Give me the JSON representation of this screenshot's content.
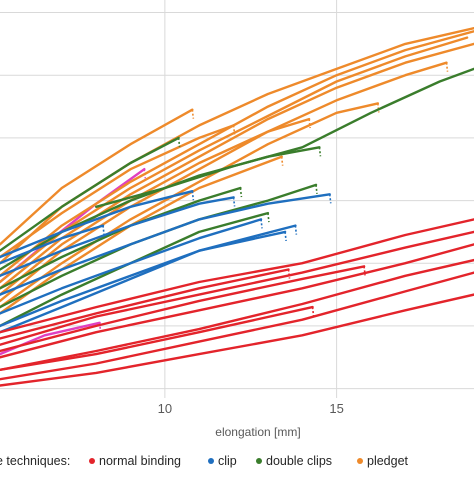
{
  "chart_data": {
    "type": "scatter",
    "xlabel": "elongation [mm]",
    "ylabel": "",
    "title": "",
    "xlim": [
      5.2,
      19.0
    ],
    "ylim": [
      -0.15,
      6.2
    ],
    "x_ticks": [
      10,
      15
    ],
    "x_tick_labels": [
      "10",
      "15"
    ],
    "grid": "vertical and horizontal",
    "legend": {
      "placement": "bottom",
      "title": "e techniques:",
      "entries": [
        "normal binding",
        "clip",
        "double clips",
        "pledget"
      ]
    },
    "colors": {
      "normal binding": "#e3242b",
      "clip": "#1f6fbf",
      "double clips": "#3a7d2c",
      "pledget": "#ee8a2b",
      "extra": "#e040c0"
    },
    "series": [
      {
        "name": "normal binding",
        "curves": [
          {
            "x": [
              5.2,
              8,
              11,
              14,
              17,
              19.0
            ],
            "y": [
              0.05,
              0.25,
              0.55,
              0.85,
              1.25,
              1.5
            ]
          },
          {
            "x": [
              5.2,
              8,
              11,
              14,
              17,
              19.0
            ],
            "y": [
              0.15,
              0.4,
              0.75,
              1.1,
              1.55,
              1.85
            ]
          },
          {
            "x": [
              5.2,
              8,
              11,
              14,
              17,
              19.0
            ],
            "y": [
              0.3,
              0.6,
              0.95,
              1.35,
              1.8,
              2.05
            ]
          },
          {
            "x": [
              5.2,
              8,
              11,
              14,
              17,
              19.0
            ],
            "y": [
              0.5,
              0.9,
              1.25,
              1.6,
              2.0,
              2.3
            ]
          },
          {
            "x": [
              5.2,
              8,
              11,
              14,
              17,
              19.0
            ],
            "y": [
              0.7,
              1.15,
              1.5,
              1.85,
              2.25,
              2.5
            ]
          },
          {
            "x": [
              5.2,
              8,
              11,
              14,
              17,
              19.0
            ],
            "y": [
              0.9,
              1.3,
              1.7,
              2.0,
              2.45,
              2.7
            ]
          },
          {
            "x": [
              5.2,
              8,
              11,
              14,
              15.8
            ],
            "y": [
              0.6,
              1.0,
              1.4,
              1.75,
              1.95
            ]
          },
          {
            "x": [
              5.2,
              8,
              11,
              13.6
            ],
            "y": [
              0.8,
              1.2,
              1.6,
              1.9
            ]
          },
          {
            "x": [
              5.2,
              8,
              11,
              14.3
            ],
            "y": [
              0.3,
              0.55,
              0.9,
              1.3
            ]
          }
        ]
      },
      {
        "name": "clip",
        "curves": [
          {
            "x": [
              5.2,
              7,
              9,
              11,
              12.8
            ],
            "y": [
              1.2,
              1.6,
              2.0,
              2.4,
              2.7
            ]
          },
          {
            "x": [
              5.2,
              7,
              9,
              11,
              13,
              14.8
            ],
            "y": [
              1.5,
              1.9,
              2.3,
              2.7,
              2.95,
              3.1
            ]
          },
          {
            "x": [
              5.2,
              7,
              9,
              11,
              12.0
            ],
            "y": [
              1.8,
              2.2,
              2.6,
              2.95,
              3.05
            ]
          },
          {
            "x": [
              5.2,
              7,
              9,
              10.8
            ],
            "y": [
              2.1,
              2.5,
              2.9,
              3.15
            ]
          },
          {
            "x": [
              5.2,
              7,
              9,
              11,
              13.5
            ],
            "y": [
              1.0,
              1.4,
              1.8,
              2.2,
              2.5
            ]
          },
          {
            "x": [
              5.2,
              7,
              9,
              11,
              13.8
            ],
            "y": [
              0.9,
              1.3,
              1.75,
              2.2,
              2.6
            ]
          },
          {
            "x": [
              5.2,
              7,
              8.2
            ],
            "y": [
              2.0,
              2.4,
              2.6
            ]
          }
        ]
      },
      {
        "name": "double clips",
        "curves": [
          {
            "x": [
              5.2,
              7,
              9,
              10.4
            ],
            "y": [
              2.2,
              2.9,
              3.6,
              4.0
            ]
          },
          {
            "x": [
              5.2,
              7,
              9,
              11,
              13,
              14.5
            ],
            "y": [
              1.9,
              2.5,
              3.0,
              3.4,
              3.7,
              3.85
            ]
          },
          {
            "x": [
              5.2,
              7,
              9,
              11,
              12.2
            ],
            "y": [
              1.6,
              2.1,
              2.6,
              3.0,
              3.2
            ]
          },
          {
            "x": [
              8,
              10,
              12,
              14,
              16,
              18,
              19.0
            ],
            "y": [
              2.9,
              3.2,
              3.55,
              3.85,
              4.4,
              4.9,
              5.1
            ]
          },
          {
            "x": [
              5.2,
              7,
              9,
              11,
              13,
              14.4
            ],
            "y": [
              1.3,
              1.8,
              2.3,
              2.7,
              3.0,
              3.25
            ]
          },
          {
            "x": [
              5.2,
              7,
              9,
              11,
              13.0
            ],
            "y": [
              1.0,
              1.5,
              2.0,
              2.5,
              2.8
            ]
          }
        ]
      },
      {
        "name": "pledget",
        "curves": [
          {
            "x": [
              5.2,
              7,
              9,
              11,
              13,
              15,
              17,
              19.0
            ],
            "y": [
              2.0,
              2.9,
              3.6,
              4.2,
              4.7,
              5.1,
              5.5,
              5.75
            ]
          },
          {
            "x": [
              5.2,
              7,
              9,
              11,
              13,
              15,
              17,
              19.0
            ],
            "y": [
              1.8,
              2.6,
              3.3,
              3.9,
              4.5,
              5.0,
              5.4,
              5.7
            ]
          },
          {
            "x": [
              5.2,
              7,
              9,
              11,
              13,
              15,
              17,
              19.0
            ],
            "y": [
              1.6,
              2.4,
              3.1,
              3.7,
              4.3,
              4.8,
              5.2,
              5.5
            ]
          },
          {
            "x": [
              5.2,
              7,
              9,
              11,
              13,
              15,
              17,
              18.2
            ],
            "y": [
              1.4,
              2.2,
              2.9,
              3.5,
              4.1,
              4.6,
              5.0,
              5.2
            ]
          },
          {
            "x": [
              5.2,
              7,
              9,
              11,
              13,
              15,
              16.2
            ],
            "y": [
              1.3,
              2.0,
              2.7,
              3.3,
              3.9,
              4.4,
              4.55
            ]
          },
          {
            "x": [
              5.2,
              7,
              9,
              11,
              13,
              14.2
            ],
            "y": [
              1.5,
              2.3,
              3.0,
              3.6,
              4.1,
              4.3
            ]
          },
          {
            "x": [
              5.2,
              7,
              9,
              10.8
            ],
            "y": [
              2.3,
              3.2,
              3.9,
              4.45
            ]
          },
          {
            "x": [
              5.2,
              7,
              9,
              11,
              12.0
            ],
            "y": [
              2.1,
              2.8,
              3.5,
              4.0,
              4.2
            ]
          },
          {
            "x": [
              5.2,
              7,
              9,
              11,
              13,
              15,
              17,
              18.8
            ],
            "y": [
              1.7,
              2.5,
              3.2,
              3.8,
              4.35,
              4.9,
              5.3,
              5.6
            ]
          },
          {
            "x": [
              5.2,
              7,
              9,
              11,
              13.4
            ],
            "y": [
              1.2,
              1.9,
              2.6,
              3.2,
              3.7
            ]
          }
        ]
      },
      {
        "name": "",
        "curves": [
          {
            "x": [
              5.2,
              6.5,
              8,
              9.4
            ],
            "y": [
              1.7,
              2.3,
              2.95,
              3.5
            ]
          },
          {
            "x": [
              5.2,
              6.5,
              8.1
            ],
            "y": [
              0.55,
              0.85,
              1.05
            ]
          }
        ]
      }
    ]
  }
}
